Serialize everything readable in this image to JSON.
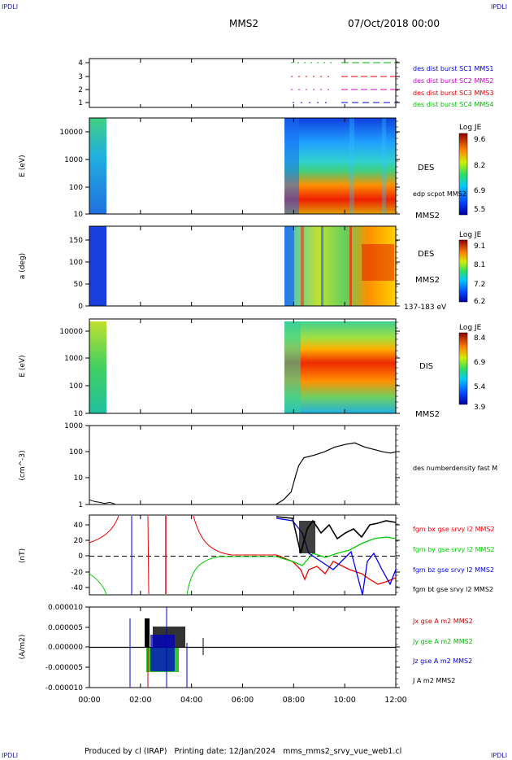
{
  "header": {
    "corner_left": "IPDLI",
    "corner_right": "IPDLI",
    "spacecraft": "MMS2",
    "datetime": "07/Oct/2018 00:00"
  },
  "footer": {
    "text": "Produced by cl (IRAP)   Printing date: 12/Jan/2024   mms_mms2_srvy_vue_web1.cl",
    "corner_left": "IPDLI",
    "corner_right": "IPDLI"
  },
  "colors": {
    "sc1": "#0000d0",
    "sc2": "#cc00cc",
    "sc3": "#dd0000",
    "sc4": "#00bb00",
    "bx": "#ee0000",
    "by": "#00cc00",
    "bz": "#0000ee",
    "bt": "#000000"
  },
  "chart_data": [
    {
      "type": "line",
      "panel": "burst-availability",
      "yticks": [
        "1",
        "2",
        "3",
        "4"
      ],
      "ylim": [
        0.5,
        4.5
      ],
      "legend": [
        "des dist burst SC1 MMS1",
        "des dist burst SC2 MMS2",
        "des dist burst SC3 MMS3",
        "des dist burst SC4 MMS4"
      ],
      "legend_colors": [
        "#0000d0",
        "#cc00cc",
        "#dd0000",
        "#00bb00"
      ]
    },
    {
      "type": "heatmap",
      "panel": "des-energy",
      "ylabel": "E (eV)",
      "yticks": [
        "10",
        "100",
        "1000",
        "10000"
      ],
      "label": "DES",
      "sublabel": "edp scpot MMS2",
      "spacecraft": "MMS2",
      "colorbar": {
        "title": "Log JE",
        "ticks": [
          "9.6",
          "8.2",
          "6.9",
          "5.5"
        ]
      }
    },
    {
      "type": "heatmap",
      "panel": "des-pitch",
      "ylabel": "a (deg)",
      "yticks": [
        "0",
        "50",
        "100",
        "150"
      ],
      "label": "DES",
      "spacecraft": "MMS2",
      "range_label": "137-183 eV",
      "colorbar": {
        "title": "Log JE",
        "ticks": [
          "9.1",
          "8.1",
          "7.2",
          "6.2"
        ]
      }
    },
    {
      "type": "heatmap",
      "panel": "dis-energy",
      "ylabel": "E (eV)",
      "yticks": [
        "10",
        "100",
        "1000",
        "10000"
      ],
      "label": "DIS",
      "spacecraft": "MMS2",
      "colorbar": {
        "title": "Log JE",
        "ticks": [
          "8.4",
          "6.9",
          "5.4",
          "3.9"
        ]
      }
    },
    {
      "type": "line",
      "panel": "density",
      "ylabel": "(cm^-3)",
      "yticks": [
        "1",
        "10",
        "100",
        "1000"
      ],
      "legend": [
        "des numberdensity fast M"
      ],
      "x": [
        0,
        0.2,
        0.4,
        0.6,
        0.8,
        1.0,
        7.3,
        7.6,
        7.9,
        8.1,
        8.2,
        8.4,
        8.8,
        9.2,
        9.6,
        10.0,
        10.4,
        10.6,
        10.8,
        11.2,
        11.5,
        11.8,
        12.0
      ],
      "values": [
        1.5,
        1.3,
        1.2,
        1.1,
        1.2,
        1.05,
        1.0,
        1.5,
        3,
        15,
        30,
        60,
        75,
        100,
        150,
        190,
        220,
        180,
        150,
        120,
        100,
        90,
        100
      ]
    },
    {
      "type": "line",
      "panel": "magnetic-field",
      "ylabel": "(nT)",
      "yticks": [
        "-40",
        "-20",
        "0",
        "20",
        "40"
      ],
      "ylim": [
        -48,
        50
      ],
      "legend": [
        "fgm bx gse srvy l2 MMS2",
        "fgm by gse srvy l2 MMS2",
        "fgm bz gse srvy l2 MMS2",
        "fgm bt gse srvy l2 MMS2"
      ],
      "legend_colors": [
        "#ee0000",
        "#00cc00",
        "#0000ee",
        "#000000"
      ]
    },
    {
      "type": "line",
      "panel": "current-density",
      "ylabel": "(A/m2)",
      "yticks": [
        "-0.000010",
        "-0.000005",
        "0.000000",
        "0.000005",
        "0.000010"
      ],
      "ylim": [
        -1e-05,
        1e-05
      ],
      "legend": [
        "Jx gse A m2 MMS2",
        "Jy gse A m2 MMS2",
        "Jz gse A m2 MMS2",
        "J A m2 MMS2"
      ],
      "legend_colors": [
        "#cc0000",
        "#00bb00",
        "#0000cc",
        "#000000"
      ]
    },
    {
      "type": "axis",
      "panel": "time-axis",
      "xticks": [
        "00:00",
        "02:00",
        "04:00",
        "06:00",
        "08:00",
        "10:00",
        "12:00"
      ]
    }
  ]
}
